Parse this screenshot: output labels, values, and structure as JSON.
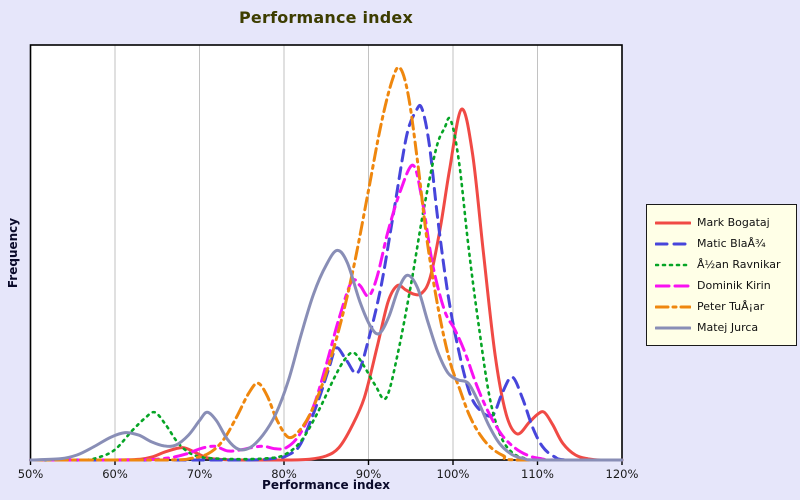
{
  "window": {
    "background": "#E6E6FA"
  },
  "title": "Performance index",
  "colors": {
    "background": "#E6E6FA",
    "plot_background": "#FFFFFF",
    "grid": "#C2C2C2",
    "axis": "#000000",
    "title_text": "#3D3D00",
    "axis_title_text": "#0A0A2A",
    "tick_label_text": "#1A1A1A",
    "legend_background": "#FFFFE7",
    "legend_border": "#1A1A1A"
  },
  "chart_data": {
    "type": "line",
    "title": "Performance index",
    "xlabel": "Performance index",
    "ylabel": "Frequency",
    "x_range": [
      50,
      120
    ],
    "ylim": [
      0,
      1
    ],
    "x_ticks": [
      {
        "value": 50,
        "label": "50%"
      },
      {
        "value": 60,
        "label": "60%"
      },
      {
        "value": 70,
        "label": "70%"
      },
      {
        "value": 80,
        "label": "80%"
      },
      {
        "value": 90,
        "label": "90%"
      },
      {
        "value": 100,
        "label": "100%"
      },
      {
        "value": 110,
        "label": "110%"
      },
      {
        "value": 120,
        "label": "120%"
      }
    ],
    "grid": "vertical-only",
    "y_ticks_visible": false,
    "legend_position": "right",
    "series": [
      {
        "name": "Mark Bogataj",
        "color": "#F04A45",
        "style": "solid",
        "dash": "",
        "width": 3,
        "x": [
          50,
          55,
          60,
          63,
          64.5,
          66,
          68,
          69.5,
          71,
          73,
          76,
          80,
          83,
          85,
          86.5,
          88,
          89.5,
          91,
          92.3,
          93.4,
          94.4,
          95.3,
          96.3,
          97.3,
          98.5,
          99.6,
          101,
          102.3,
          103.6,
          105,
          106.3,
          107.6,
          109,
          110,
          110.8,
          111.8,
          113,
          114.5,
          116,
          117.5,
          120
        ],
        "y": [
          0,
          0,
          0,
          0.002,
          0.008,
          0.02,
          0.03,
          0.018,
          0.005,
          0.001,
          0,
          0,
          0.002,
          0.01,
          0.03,
          0.08,
          0.15,
          0.27,
          0.38,
          0.42,
          0.41,
          0.4,
          0.402,
          0.44,
          0.56,
          0.7,
          0.845,
          0.74,
          0.5,
          0.25,
          0.11,
          0.063,
          0.09,
          0.11,
          0.115,
          0.085,
          0.04,
          0.012,
          0.003,
          0,
          0
        ]
      },
      {
        "name": "Matic BlaÅ¾",
        "color": "#4745DB",
        "style": "dashed",
        "dash": "11 7",
        "width": 3,
        "x": [
          50,
          60,
          70,
          76,
          79,
          80.5,
          82,
          84,
          85.3,
          86.2,
          87.4,
          88.7,
          90,
          91.5,
          93,
          94.5,
          95.6,
          96.3,
          97.2,
          98.2,
          99.4,
          100.6,
          102,
          103.3,
          104.7,
          105.8,
          107,
          108.2,
          109.4,
          110.6,
          112,
          113.5,
          120
        ],
        "y": [
          0,
          0,
          0,
          0,
          0.004,
          0.012,
          0.04,
          0.14,
          0.22,
          0.27,
          0.24,
          0.21,
          0.29,
          0.42,
          0.6,
          0.78,
          0.84,
          0.848,
          0.76,
          0.58,
          0.4,
          0.27,
          0.16,
          0.118,
          0.108,
          0.16,
          0.2,
          0.15,
          0.08,
          0.032,
          0.008,
          0,
          0
        ]
      },
      {
        "name": "Å½an Ravnikar",
        "color": "#06A525",
        "style": "dotted",
        "dash": "2 5",
        "width": 2.6,
        "x": [
          50,
          56,
          58,
          60,
          62,
          63.5,
          64.7,
          66,
          67.5,
          69,
          70.5,
          72.5,
          75,
          78,
          80,
          82,
          84,
          86,
          87.3,
          88.3,
          89.5,
          90.8,
          92.1,
          93.5,
          95,
          96.5,
          98,
          99,
          99.7,
          100.7,
          101.8,
          103,
          104.3,
          105.6,
          107,
          108.5,
          110,
          120
        ],
        "y": [
          0,
          0,
          0.006,
          0.025,
          0.07,
          0.1,
          0.115,
          0.085,
          0.04,
          0.015,
          0.006,
          0.003,
          0.002,
          0.004,
          0.012,
          0.045,
          0.115,
          0.2,
          0.245,
          0.258,
          0.225,
          0.18,
          0.15,
          0.26,
          0.42,
          0.6,
          0.75,
          0.8,
          0.82,
          0.72,
          0.52,
          0.33,
          0.155,
          0.06,
          0.018,
          0.004,
          0,
          0
        ]
      },
      {
        "name": "Dominik Kirin",
        "color": "#F911F2",
        "style": "dash-dash-dot",
        "dash": "13 6 13 6 4 6",
        "width": 3,
        "x": [
          50,
          62,
          66,
          68.5,
          70.2,
          71.8,
          73.3,
          74.8,
          76.2,
          77.6,
          79,
          80.3,
          81.8,
          83.5,
          85,
          86.5,
          88,
          89,
          90,
          91,
          92.3,
          93.8,
          95.3,
          96.4,
          97.6,
          99,
          100.2,
          101.4,
          102.8,
          104.2,
          105.8,
          107.4,
          109,
          110.5,
          112,
          120
        ],
        "y": [
          0,
          0,
          0.004,
          0.015,
          0.028,
          0.033,
          0.022,
          0.024,
          0.03,
          0.033,
          0.027,
          0.03,
          0.06,
          0.13,
          0.23,
          0.34,
          0.43,
          0.42,
          0.395,
          0.44,
          0.55,
          0.65,
          0.71,
          0.62,
          0.47,
          0.36,
          0.315,
          0.26,
          0.18,
          0.115,
          0.06,
          0.028,
          0.01,
          0.003,
          0,
          0
        ]
      },
      {
        "name": "Peter TuÅ¡ar",
        "color": "#EF870E",
        "style": "dash-dot",
        "dash": "12 5 3 5",
        "width": 3,
        "x": [
          50,
          66,
          69,
          71,
          72.7,
          74.3,
          75.8,
          76.9,
          78,
          79.2,
          80.5,
          81.8,
          83.3,
          85,
          86.7,
          88.3,
          90,
          91.5,
          92.8,
          93.7,
          94.7,
          95.8,
          97,
          98.3,
          99.6,
          100.8,
          102,
          103.3,
          104.6,
          106,
          107.5,
          120
        ],
        "y": [
          0,
          0,
          0.004,
          0.015,
          0.045,
          0.1,
          0.16,
          0.185,
          0.155,
          0.095,
          0.055,
          0.07,
          0.12,
          0.21,
          0.33,
          0.47,
          0.65,
          0.81,
          0.915,
          0.945,
          0.88,
          0.72,
          0.52,
          0.36,
          0.24,
          0.17,
          0.105,
          0.058,
          0.028,
          0.01,
          0,
          0
        ]
      },
      {
        "name": "Matej Jurca",
        "color": "#898EB6",
        "style": "solid",
        "dash": "",
        "width": 3,
        "x": [
          50,
          53.5,
          55.5,
          57.5,
          59.5,
          61.2,
          62.8,
          64.3,
          65.8,
          67.2,
          68.7,
          70,
          70.9,
          72,
          73.3,
          74.6,
          76,
          77.5,
          79,
          80.5,
          82,
          83.5,
          85,
          86.3,
          87.5,
          89,
          90.3,
          91.3,
          92.4,
          93.5,
          94.6,
          95.8,
          97,
          98.2,
          99.4,
          100.6,
          101.8,
          103,
          104.2,
          105.5,
          107,
          108.5,
          110,
          120
        ],
        "y": [
          0,
          0.003,
          0.012,
          0.032,
          0.055,
          0.066,
          0.06,
          0.044,
          0.034,
          0.036,
          0.06,
          0.095,
          0.115,
          0.095,
          0.05,
          0.026,
          0.03,
          0.06,
          0.11,
          0.19,
          0.3,
          0.4,
          0.47,
          0.505,
          0.475,
          0.38,
          0.32,
          0.305,
          0.345,
          0.41,
          0.445,
          0.415,
          0.335,
          0.26,
          0.21,
          0.193,
          0.185,
          0.14,
          0.085,
          0.04,
          0.013,
          0.003,
          0,
          0
        ]
      }
    ]
  }
}
